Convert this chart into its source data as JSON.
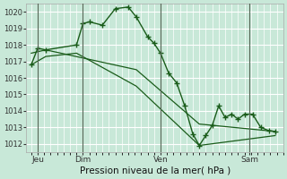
{
  "xlabel": "Pression niveau de la mer( hPa )",
  "ylim": [
    1011.5,
    1020.5
  ],
  "yticks": [
    1012,
    1013,
    1014,
    1015,
    1016,
    1017,
    1018,
    1019,
    1020
  ],
  "bg_color": "#c8e8d8",
  "grid_color": "#ffffff",
  "line_color": "#1a5c1a",
  "series1_x": [
    0,
    0.4,
    0.9,
    2.8,
    3.2,
    3.6,
    4.4,
    5.2,
    6.0,
    6.5,
    7.2,
    7.6,
    8.0,
    8.5,
    9.0,
    9.5,
    10.0,
    10.4,
    10.8,
    11.2,
    11.6,
    12.0,
    12.4,
    12.8,
    13.2,
    13.7,
    14.2,
    14.7,
    15.1
  ],
  "series1_y": [
    1016.8,
    1017.8,
    1017.7,
    1018.0,
    1019.3,
    1019.4,
    1019.2,
    1020.2,
    1020.3,
    1019.7,
    1018.5,
    1018.1,
    1017.5,
    1016.3,
    1015.7,
    1014.3,
    1012.6,
    1011.9,
    1012.5,
    1013.1,
    1014.3,
    1013.6,
    1013.8,
    1013.5,
    1013.8,
    1013.8,
    1013.0,
    1012.8,
    1012.75
  ],
  "series2_x": [
    0,
    0.9,
    6.5,
    10.4,
    15.1
  ],
  "series2_y": [
    1017.5,
    1017.7,
    1016.5,
    1013.2,
    1012.75
  ],
  "series3_x": [
    0,
    0.9,
    2.8,
    6.5,
    10.4,
    15.1
  ],
  "series3_y": [
    1016.8,
    1017.3,
    1017.5,
    1015.5,
    1011.9,
    1012.5
  ],
  "xtick_positions": [
    0.4,
    3.2,
    8.0,
    13.5
  ],
  "xtick_labels": [
    "Jeu",
    "Dim",
    "Ven",
    "Sam"
  ],
  "vlines": [
    0.4,
    3.2,
    8.0,
    13.5
  ],
  "vline_color": "#556655"
}
